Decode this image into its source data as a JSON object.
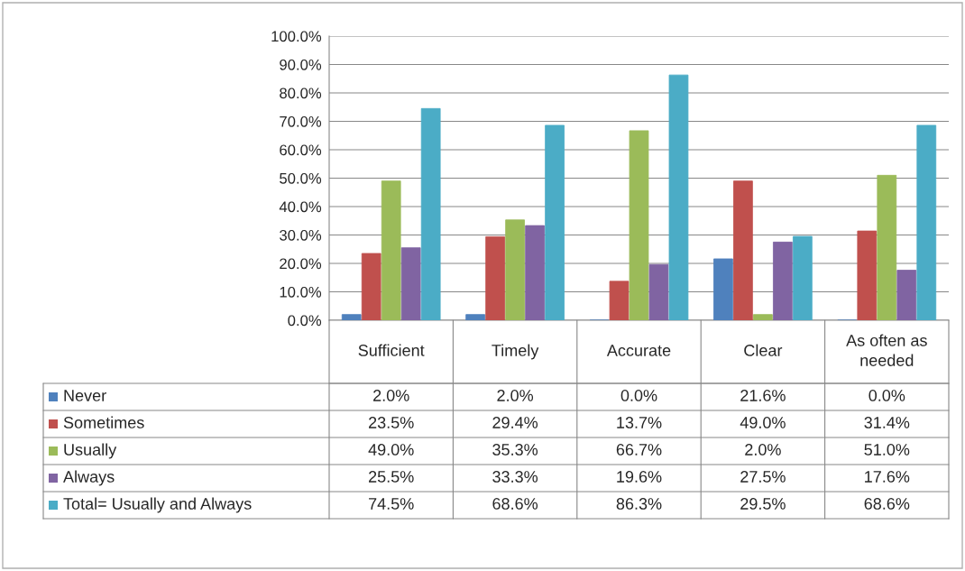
{
  "chart_data": {
    "type": "bar",
    "categories": [
      "Sufficient",
      "Timely",
      "Accurate",
      "Clear",
      "As often as needed"
    ],
    "series": [
      {
        "name": "Never",
        "color": "#4f81bd",
        "values": [
          2.0,
          2.0,
          0.0,
          21.6,
          0.0
        ],
        "value_labels": [
          "2.0%",
          "2.0%",
          "0.0%",
          "21.6%",
          "0.0%"
        ]
      },
      {
        "name": "Sometimes",
        "color": "#c0504d",
        "values": [
          23.5,
          29.4,
          13.7,
          49.0,
          31.4
        ],
        "value_labels": [
          "23.5%",
          "29.4%",
          "13.7%",
          "49.0%",
          "31.4%"
        ]
      },
      {
        "name": "Usually",
        "color": "#9bbb59",
        "values": [
          49.0,
          35.3,
          66.7,
          2.0,
          51.0
        ],
        "value_labels": [
          "49.0%",
          "35.3%",
          "66.7%",
          "2.0%",
          "51.0%"
        ]
      },
      {
        "name": "Always",
        "color": "#8064a2",
        "values": [
          25.5,
          33.3,
          19.6,
          27.5,
          17.6
        ],
        "value_labels": [
          "25.5%",
          "33.3%",
          "19.6%",
          "27.5%",
          "17.6%"
        ]
      },
      {
        "name": "Total= Usually and Always",
        "color": "#4bacc6",
        "values": [
          74.5,
          68.6,
          86.3,
          29.5,
          68.6
        ],
        "value_labels": [
          "74.5%",
          "68.6%",
          "86.3%",
          "29.5%",
          "68.6%"
        ]
      }
    ],
    "ylim": [
      0,
      100
    ],
    "yticks": [
      {
        "value": 0,
        "label": "0.0%"
      },
      {
        "value": 10,
        "label": "10.0%"
      },
      {
        "value": 20,
        "label": "20.0%"
      },
      {
        "value": 30,
        "label": "30.0%"
      },
      {
        "value": 40,
        "label": "40.0%"
      },
      {
        "value": 50,
        "label": "50.0%"
      },
      {
        "value": 60,
        "label": "60.0%"
      },
      {
        "value": 70,
        "label": "70.0%"
      },
      {
        "value": 80,
        "label": "80.0%"
      },
      {
        "value": 90,
        "label": "90.0%"
      },
      {
        "value": 100,
        "label": "100.0%"
      }
    ],
    "grid": "y",
    "legend": "bottom"
  }
}
